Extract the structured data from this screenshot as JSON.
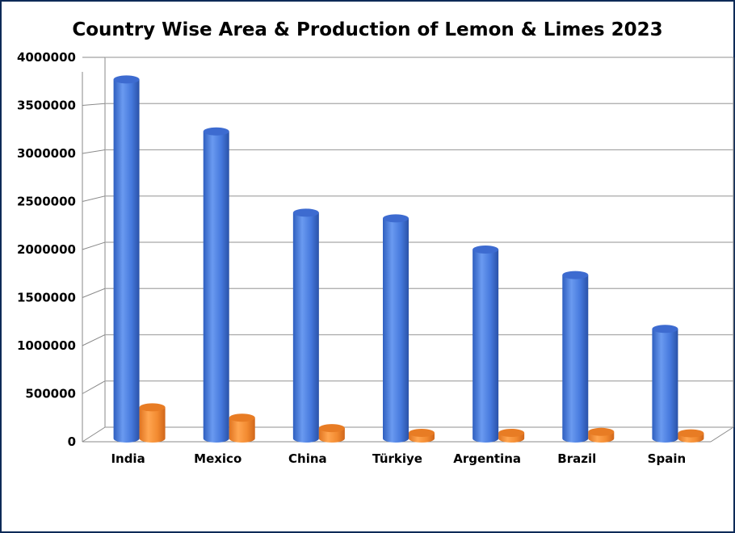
{
  "chart_data": {
    "type": "bar",
    "title": "Country Wise Area & Production of Lemon & Limes 2023",
    "xlabel": "",
    "ylabel": "",
    "categories": [
      "India",
      "Mexico",
      "China",
      "Türkiye",
      "Argentina",
      "Brazil",
      "Spain"
    ],
    "series": [
      {
        "values": [
          3800000,
          3250000,
          2390000,
          2330000,
          2000000,
          1730000,
          1160000
        ]
      },
      {
        "values": [
          330000,
          220000,
          110000,
          60000,
          60000,
          70000,
          55000
        ]
      }
    ],
    "ylim": [
      0,
      4000000
    ],
    "yticks": [
      "0",
      "500000",
      "1000000",
      "1500000",
      "2000000",
      "2500000",
      "3000000",
      "3500000",
      "4000000"
    ],
    "grid": true,
    "legend": "none",
    "style": "3d-cylinder",
    "colors": {
      "series1": "#4a7ee0",
      "series2": "#f28a30",
      "frame": "#0d2a57"
    }
  }
}
